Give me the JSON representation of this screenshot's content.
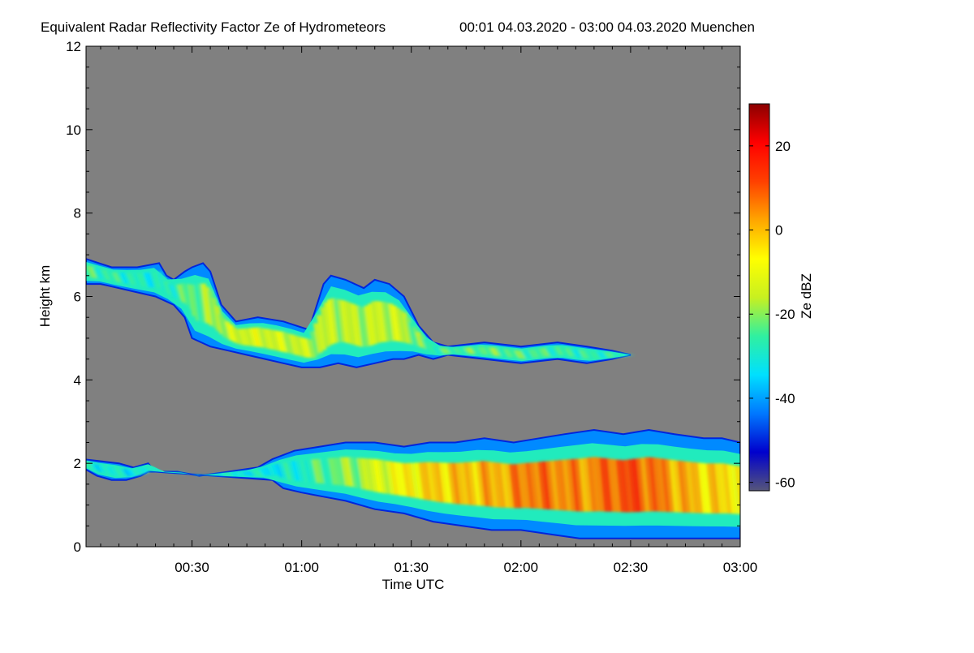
{
  "chart_data": {
    "type": "heatmap",
    "title": "Equivalent Radar Reflectivity Factor Ze of Hydrometeors",
    "subtitle": "00:01 04.03.2020 - 03:00 04.03.2020 Muenchen",
    "xlabel": "Time UTC",
    "ylabel": "Height km",
    "colorbar_label": "Ze dBZ",
    "x_ticks": [
      "00:30",
      "01:00",
      "01:30",
      "02:00",
      "02:30",
      "03:00"
    ],
    "x_tick_minutes": [
      30,
      60,
      90,
      120,
      150,
      180
    ],
    "xlim_minutes": [
      1,
      180
    ],
    "y_ticks": [
      "0",
      "2",
      "4",
      "6",
      "8",
      "10",
      "12"
    ],
    "ylim": [
      0,
      12
    ],
    "colorbar_ticks": [
      "-60",
      "-40",
      "-20",
      "0",
      "20"
    ],
    "colorbar_tick_values": [
      -60,
      -40,
      -20,
      0,
      20
    ],
    "colorbar_range": [
      -62,
      30
    ],
    "background_color": "#808080",
    "colormap": [
      "#56567a",
      "#0000cd",
      "#0078ff",
      "#00e0ff",
      "#30f0a0",
      "#c8f020",
      "#ffff00",
      "#ffa500",
      "#ff4000",
      "#ff0000",
      "#8b0000"
    ],
    "echo_layers": [
      {
        "name_hint": "upper ice cloud",
        "top": [
          [
            1,
            6.9
          ],
          [
            8,
            6.7
          ],
          [
            15,
            6.7
          ],
          [
            21,
            6.8
          ],
          [
            23,
            6.5
          ],
          [
            25,
            6.4
          ],
          [
            28,
            6.6
          ],
          [
            30,
            6.7
          ],
          [
            33,
            6.8
          ],
          [
            35,
            6.6
          ],
          [
            38,
            5.8
          ],
          [
            42,
            5.4
          ],
          [
            48,
            5.5
          ],
          [
            55,
            5.4
          ],
          [
            62,
            5.2
          ],
          [
            66,
            6.3
          ],
          [
            68,
            6.5
          ],
          [
            72,
            6.4
          ],
          [
            77,
            6.2
          ],
          [
            80,
            6.4
          ],
          [
            84,
            6.3
          ],
          [
            88,
            6.0
          ],
          [
            92,
            5.3
          ],
          [
            96,
            4.9
          ],
          [
            100,
            4.8
          ],
          [
            110,
            4.9
          ],
          [
            120,
            4.8
          ],
          [
            130,
            4.9
          ],
          [
            138,
            4.8
          ],
          [
            145,
            4.7
          ],
          [
            150,
            4.6
          ]
        ],
        "bottom": [
          [
            1,
            6.3
          ],
          [
            5,
            6.3
          ],
          [
            10,
            6.2
          ],
          [
            15,
            6.1
          ],
          [
            20,
            6.0
          ],
          [
            25,
            5.8
          ],
          [
            28,
            5.5
          ],
          [
            30,
            5.0
          ],
          [
            35,
            4.8
          ],
          [
            40,
            4.7
          ],
          [
            45,
            4.6
          ],
          [
            50,
            4.5
          ],
          [
            55,
            4.4
          ],
          [
            60,
            4.3
          ],
          [
            65,
            4.3
          ],
          [
            70,
            4.4
          ],
          [
            75,
            4.3
          ],
          [
            80,
            4.4
          ],
          [
            85,
            4.5
          ],
          [
            88,
            4.5
          ],
          [
            92,
            4.6
          ],
          [
            96,
            4.5
          ],
          [
            100,
            4.6
          ],
          [
            110,
            4.5
          ],
          [
            120,
            4.4
          ],
          [
            130,
            4.5
          ],
          [
            138,
            4.4
          ],
          [
            145,
            4.5
          ],
          [
            150,
            4.6
          ]
        ],
        "core_db": [
          [
            1,
            -25
          ],
          [
            20,
            -30
          ],
          [
            30,
            -22
          ],
          [
            45,
            -12
          ],
          [
            60,
            -15
          ],
          [
            75,
            -16
          ],
          [
            85,
            -14
          ],
          [
            95,
            -26
          ],
          [
            110,
            -22
          ],
          [
            130,
            -26
          ],
          [
            150,
            -28
          ]
        ]
      },
      {
        "name_hint": "lower precipitation layer",
        "top": [
          [
            0,
            2.1
          ],
          [
            10,
            2.0
          ],
          [
            14,
            1.9
          ],
          [
            18,
            2.0
          ],
          [
            20,
            1.8
          ],
          [
            26,
            1.8
          ],
          [
            32,
            1.7
          ],
          [
            40,
            1.8
          ],
          [
            48,
            1.9
          ],
          [
            52,
            2.1
          ],
          [
            58,
            2.3
          ],
          [
            65,
            2.4
          ],
          [
            72,
            2.5
          ],
          [
            80,
            2.5
          ],
          [
            88,
            2.4
          ],
          [
            95,
            2.5
          ],
          [
            102,
            2.5
          ],
          [
            110,
            2.6
          ],
          [
            118,
            2.5
          ],
          [
            125,
            2.6
          ],
          [
            132,
            2.7
          ],
          [
            140,
            2.8
          ],
          [
            148,
            2.7
          ],
          [
            155,
            2.8
          ],
          [
            162,
            2.7
          ],
          [
            170,
            2.6
          ],
          [
            175,
            2.6
          ],
          [
            180,
            2.5
          ]
        ],
        "bottom": [
          [
            0,
            1.9
          ],
          [
            4,
            1.7
          ],
          [
            8,
            1.6
          ],
          [
            12,
            1.6
          ],
          [
            16,
            1.7
          ],
          [
            18,
            1.8
          ],
          [
            20,
            1.8
          ],
          [
            52,
            1.6
          ],
          [
            55,
            1.4
          ],
          [
            60,
            1.3
          ],
          [
            66,
            1.2
          ],
          [
            72,
            1.1
          ],
          [
            80,
            0.9
          ],
          [
            88,
            0.8
          ],
          [
            96,
            0.6
          ],
          [
            104,
            0.5
          ],
          [
            112,
            0.4
          ],
          [
            120,
            0.4
          ],
          [
            128,
            0.3
          ],
          [
            136,
            0.2
          ],
          [
            144,
            0.2
          ],
          [
            152,
            0.2
          ],
          [
            160,
            0.2
          ],
          [
            168,
            0.2
          ],
          [
            174,
            0.2
          ],
          [
            180,
            0.2
          ]
        ],
        "core_db": [
          [
            0,
            -30
          ],
          [
            20,
            -32
          ],
          [
            55,
            -32
          ],
          [
            65,
            -24
          ],
          [
            75,
            -18
          ],
          [
            85,
            -8
          ],
          [
            95,
            -2
          ],
          [
            105,
            0
          ],
          [
            115,
            2
          ],
          [
            122,
            8
          ],
          [
            130,
            6
          ],
          [
            138,
            4
          ],
          [
            145,
            10
          ],
          [
            150,
            12
          ],
          [
            160,
            4
          ],
          [
            170,
            -2
          ],
          [
            180,
            -4
          ]
        ]
      }
    ],
    "legend": "colorbar right",
    "grid": false
  }
}
